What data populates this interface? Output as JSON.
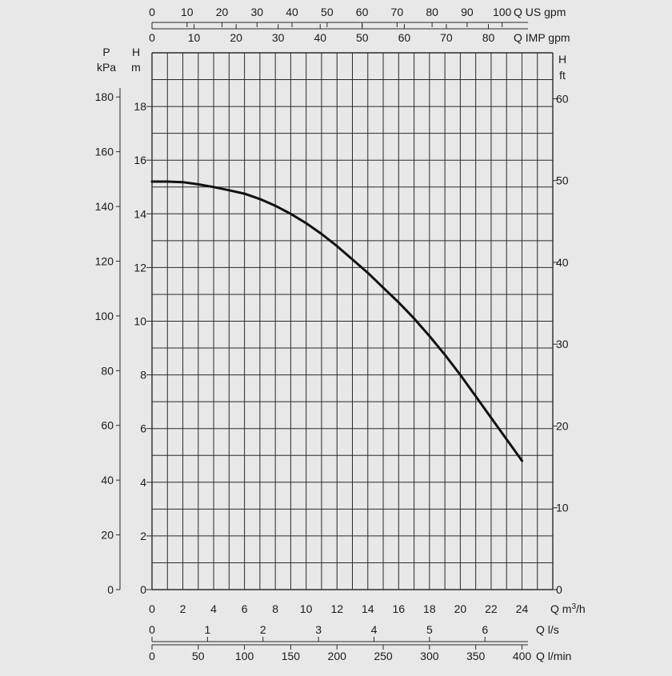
{
  "chart_data": {
    "type": "line",
    "title": "",
    "grid": true,
    "background": "#e8e8e8",
    "line_color": "#111111",
    "grid_color": "#2a2a2a",
    "x_axis": {
      "label_prefix": "Q m",
      "label_sup": "3",
      "label_suffix": "/h",
      "range": [
        0,
        26
      ],
      "ticks": [
        "0",
        "2",
        "4",
        "6",
        "8",
        "10",
        "12",
        "14",
        "16",
        "18",
        "20",
        "22",
        "24"
      ]
    },
    "y_axis": {
      "label_top": "H",
      "label_unit": "m",
      "range": [
        0,
        20
      ],
      "ticks": [
        "0",
        "2",
        "4",
        "6",
        "8",
        "10",
        "12",
        "14",
        "16",
        "18"
      ]
    },
    "secondary_axes": {
      "pressure": {
        "label_top": "P",
        "label_unit": "kPa",
        "ticks": [
          "0",
          "20",
          "40",
          "60",
          "80",
          "100",
          "120",
          "140",
          "160",
          "180"
        ]
      },
      "head_ft": {
        "label_top": "H",
        "label_unit": "ft",
        "ticks": [
          "0",
          "10",
          "20",
          "30",
          "40",
          "50",
          "60"
        ]
      },
      "us_gpm": {
        "label": "Q US gpm",
        "ticks": [
          "0",
          "10",
          "20",
          "30",
          "40",
          "50",
          "60",
          "70",
          "80",
          "90",
          "100"
        ]
      },
      "imp_gpm": {
        "label": "Q IMP gpm",
        "ticks": [
          "0",
          "10",
          "20",
          "30",
          "40",
          "50",
          "60",
          "70",
          "80"
        ]
      },
      "l_per_s": {
        "label": "Q l/s",
        "ticks": [
          "0",
          "1",
          "2",
          "3",
          "4",
          "5",
          "6"
        ]
      },
      "l_per_min": {
        "label": "Q l/min",
        "ticks": [
          "0",
          "50",
          "100",
          "150",
          "200",
          "250",
          "300",
          "350",
          "400"
        ]
      }
    },
    "series": [
      {
        "x": [
          0,
          1,
          2,
          3,
          4,
          5,
          6,
          7,
          8,
          9,
          10,
          11,
          12,
          13,
          14,
          15,
          16,
          17,
          18,
          19,
          20,
          21,
          22,
          23,
          24
        ],
        "y": [
          15.2,
          15.2,
          15.18,
          15.1,
          15.0,
          14.88,
          14.75,
          14.55,
          14.3,
          14.0,
          13.65,
          13.25,
          12.8,
          12.3,
          11.8,
          11.25,
          10.7,
          10.1,
          9.45,
          8.75,
          8.0,
          7.2,
          6.4,
          5.6,
          4.8
        ]
      }
    ]
  }
}
